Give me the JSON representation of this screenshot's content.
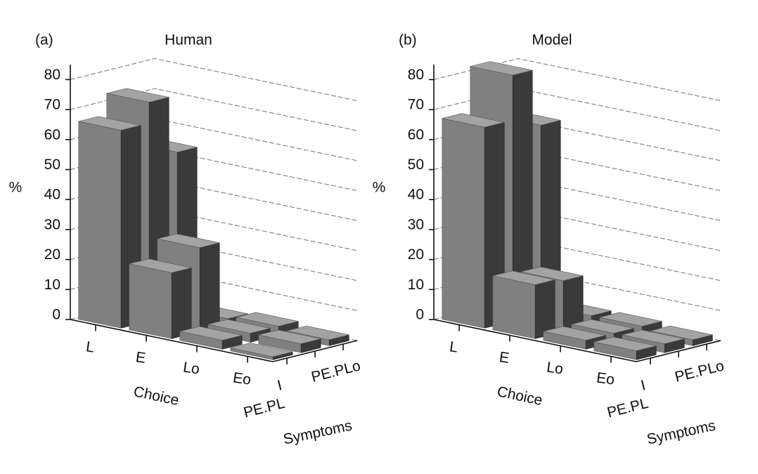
{
  "chart_data": [
    {
      "type": "bar3d",
      "panel_label": "(a)",
      "title": "Human",
      "ylabel": "%",
      "xlabel": "Choice",
      "zlabel": "Symptoms",
      "categories": [
        "L",
        "E",
        "Lo",
        "Eo"
      ],
      "series": [
        {
          "name": "I",
          "values": [
            66,
            22,
            3,
            1
          ]
        },
        {
          "name": "PE.PL",
          "values": [
            73,
            28,
            3,
            3
          ]
        },
        {
          "name": "PE.PLo",
          "values": [
            54,
            2,
            3,
            2
          ]
        }
      ],
      "ylim": [
        0,
        85
      ],
      "yticks": [
        0,
        10,
        20,
        30,
        40,
        50,
        60,
        70,
        80
      ],
      "grid": true,
      "color": "#808080",
      "side_color": "#3a3a3a",
      "top_color": "#a3a3a3"
    },
    {
      "type": "bar3d",
      "panel_label": "(b)",
      "title": "Model",
      "ylabel": "%",
      "xlabel": "Choice",
      "zlabel": "Symptoms",
      "categories": [
        "L",
        "E",
        "Lo",
        "Eo"
      ],
      "series": [
        {
          "name": "I",
          "values": [
            67,
            18,
            3,
            3
          ]
        },
        {
          "name": "PE.PL",
          "values": [
            82,
            17,
            3,
            3
          ]
        },
        {
          "name": "PE.PLo",
          "values": [
            63,
            3,
            3,
            2
          ]
        }
      ],
      "ylim": [
        0,
        85
      ],
      "yticks": [
        0,
        10,
        20,
        30,
        40,
        50,
        60,
        70,
        80
      ],
      "grid": true,
      "color": "#808080",
      "side_color": "#3a3a3a",
      "top_color": "#a3a3a3"
    }
  ]
}
